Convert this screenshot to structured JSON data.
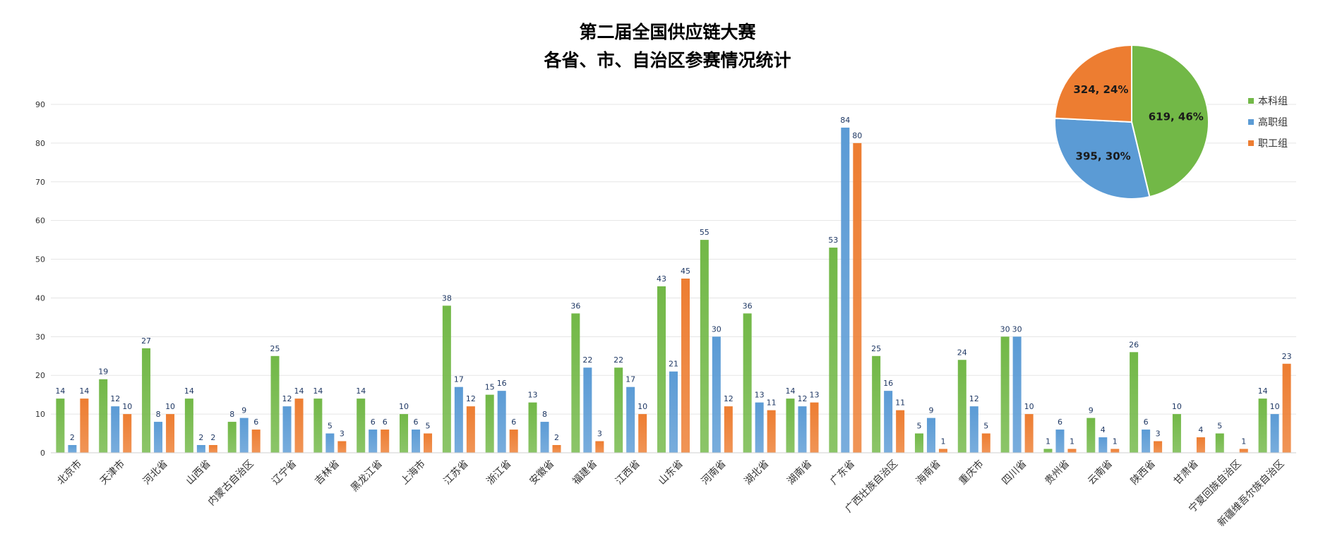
{
  "title": {
    "line1": "第二届全国供应链大赛",
    "line2": "各省、市、自治区参赛情况统计"
  },
  "colors": {
    "green": "#72B847",
    "blue": "#5B9BD5",
    "orange": "#ED7D31",
    "grid": "#E5E5E5",
    "axis_text": "#333333",
    "label_text": "#1F3864"
  },
  "chart_data": [
    {
      "type": "bar",
      "categories": [
        "北京市",
        "天津市",
        "河北省",
        "山西省",
        "内蒙古自治区",
        "辽宁省",
        "吉林省",
        "黑龙江省",
        "上海市",
        "江苏省",
        "浙江省",
        "安徽省",
        "福建省",
        "江西省",
        "山东省",
        "河南省",
        "湖北省",
        "湖南省",
        "广东省",
        "广西壮族自治区",
        "海南省",
        "重庆市",
        "四川省",
        "贵州省",
        "云南省",
        "陕西省",
        "甘肃省",
        "宁夏回族自治区",
        "新疆维吾尔族自治区"
      ],
      "series": [
        {
          "name": "本科组",
          "color": "#72B847",
          "values": [
            14,
            19,
            27,
            14,
            8,
            25,
            14,
            14,
            10,
            38,
            15,
            13,
            36,
            22,
            43,
            55,
            36,
            14,
            53,
            25,
            5,
            24,
            30,
            1,
            9,
            26,
            10,
            5,
            14
          ]
        },
        {
          "name": "高职组",
          "color": "#5B9BD5",
          "values": [
            2,
            12,
            8,
            2,
            9,
            12,
            5,
            6,
            6,
            17,
            16,
            8,
            22,
            17,
            21,
            30,
            13,
            12,
            84,
            16,
            9,
            12,
            30,
            6,
            4,
            6,
            null,
            null,
            10
          ]
        },
        {
          "name": "职工组",
          "color": "#ED7D31",
          "values": [
            14,
            10,
            10,
            2,
            6,
            14,
            3,
            6,
            5,
            12,
            6,
            2,
            3,
            10,
            45,
            12,
            11,
            13,
            80,
            11,
            1,
            5,
            10,
            1,
            1,
            3,
            4,
            1,
            23
          ]
        }
      ],
      "yticks": [
        "0",
        "10",
        "20",
        "30",
        "40",
        "50",
        "60",
        "70",
        "80",
        "90"
      ],
      "ylim": [
        0,
        90
      ],
      "grid": true,
      "legend": "right"
    },
    {
      "type": "pie",
      "slices": [
        {
          "name": "本科组",
          "value": 619,
          "percent": 46,
          "label": "619, 46%",
          "color": "#72B847"
        },
        {
          "name": "高职组",
          "value": 395,
          "percent": 30,
          "label": "395, 30%",
          "color": "#5B9BD5"
        },
        {
          "name": "职工组",
          "value": 324,
          "percent": 24,
          "label": "324, 24%",
          "color": "#ED7D31"
        }
      ]
    }
  ],
  "legend": [
    {
      "label": "本科组",
      "color": "#72B847"
    },
    {
      "label": "高职组",
      "color": "#5B9BD5"
    },
    {
      "label": "职工组",
      "color": "#ED7D31"
    }
  ]
}
